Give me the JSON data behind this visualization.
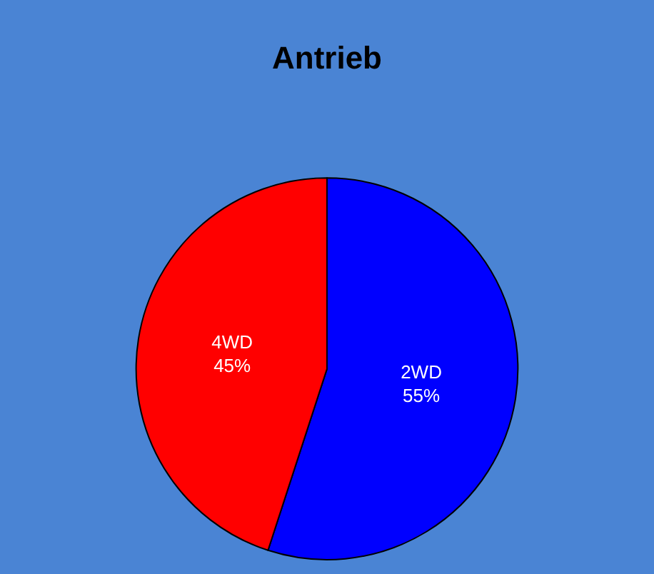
{
  "chart_data": {
    "type": "pie",
    "title": "Antrieb",
    "categories": [
      "2WD",
      "4WD"
    ],
    "values": [
      55,
      45
    ],
    "value_labels": [
      "55%",
      "45%"
    ],
    "colors": [
      "#0000ff",
      "#ff0000"
    ],
    "legend": false
  }
}
